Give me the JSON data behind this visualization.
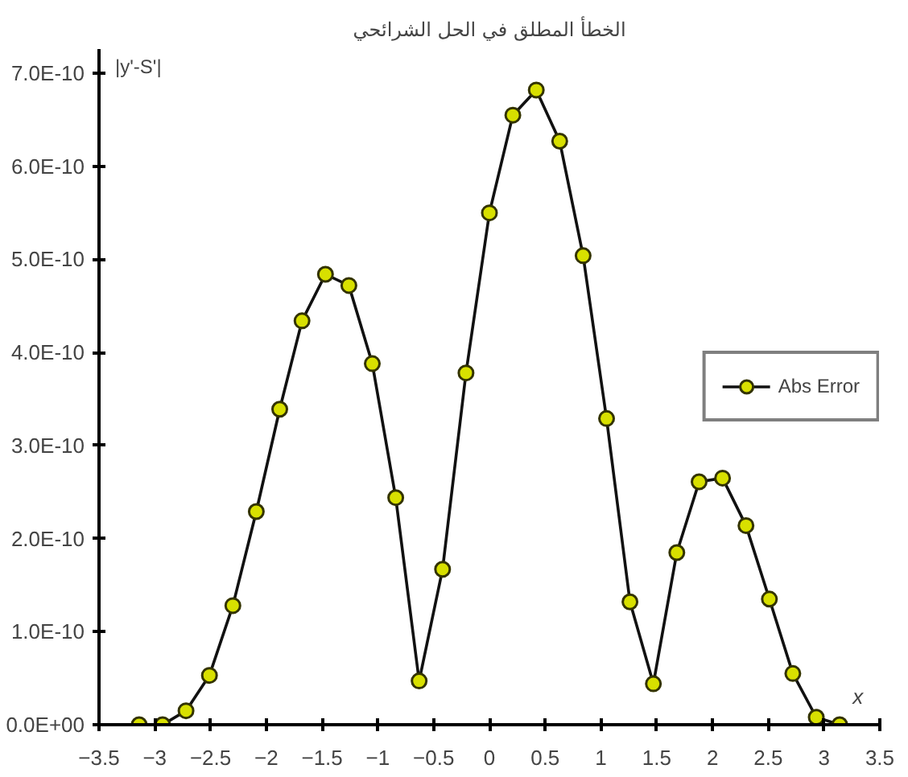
{
  "chart_data": {
    "type": "line",
    "title": "الخطأ المطلق في الحل الشرائحي",
    "ylabel": "|y'-S'|",
    "xlabel": "x",
    "x": [
      -3.14,
      -2.93,
      -2.72,
      -2.51,
      -2.3,
      -2.09,
      -1.88,
      -1.68,
      -1.47,
      -1.26,
      -1.05,
      -0.84,
      -0.63,
      -0.42,
      -0.21,
      0,
      0.21,
      0.42,
      0.63,
      0.84,
      1.05,
      1.26,
      1.47,
      1.68,
      1.88,
      2.09,
      2.3,
      2.51,
      2.72,
      2.93,
      3.14
    ],
    "series": [
      {
        "name": "Abs Error",
        "color": "#d8e000",
        "values": [
          0,
          0,
          1.5e-11,
          5.3e-11,
          1.28e-10,
          2.29e-10,
          3.39e-10,
          4.34e-10,
          4.84e-10,
          4.72e-10,
          3.88e-10,
          2.44e-10,
          4.7e-11,
          1.67e-10,
          3.78e-10,
          5.5e-10,
          6.55e-10,
          6.82e-10,
          6.27e-10,
          5.04e-10,
          3.29e-10,
          1.32e-10,
          4.4e-11,
          1.85e-10,
          2.61e-10,
          2.65e-10,
          2.14e-10,
          1.35e-10,
          5.5e-11,
          8e-12,
          0
        ]
      }
    ],
    "xlim": [
      -3.5,
      3.5
    ],
    "ylim": [
      0,
      7.26e-10
    ],
    "xticks": [
      -3.5,
      -3,
      -2.5,
      -2,
      -1.5,
      -1,
      -0.5,
      0,
      0.5,
      1,
      1.5,
      2,
      2.5,
      3,
      3.5
    ],
    "yticks": [
      {
        "value": 0,
        "label": "0.0E+00"
      },
      {
        "value": 1e-10,
        "label": "1.0E-10"
      },
      {
        "value": 2e-10,
        "label": "2.0E-10"
      },
      {
        "value": 3e-10,
        "label": "3.0E-10"
      },
      {
        "value": 4e-10,
        "label": "4.0E-10"
      },
      {
        "value": 5e-10,
        "label": "5.0E-10"
      },
      {
        "value": 6e-10,
        "label": "6.0E-10"
      },
      {
        "value": 7e-10,
        "label": "7.0E-10"
      }
    ],
    "grid": false,
    "legend": "right",
    "marker": "circle",
    "line_style": "solid"
  }
}
